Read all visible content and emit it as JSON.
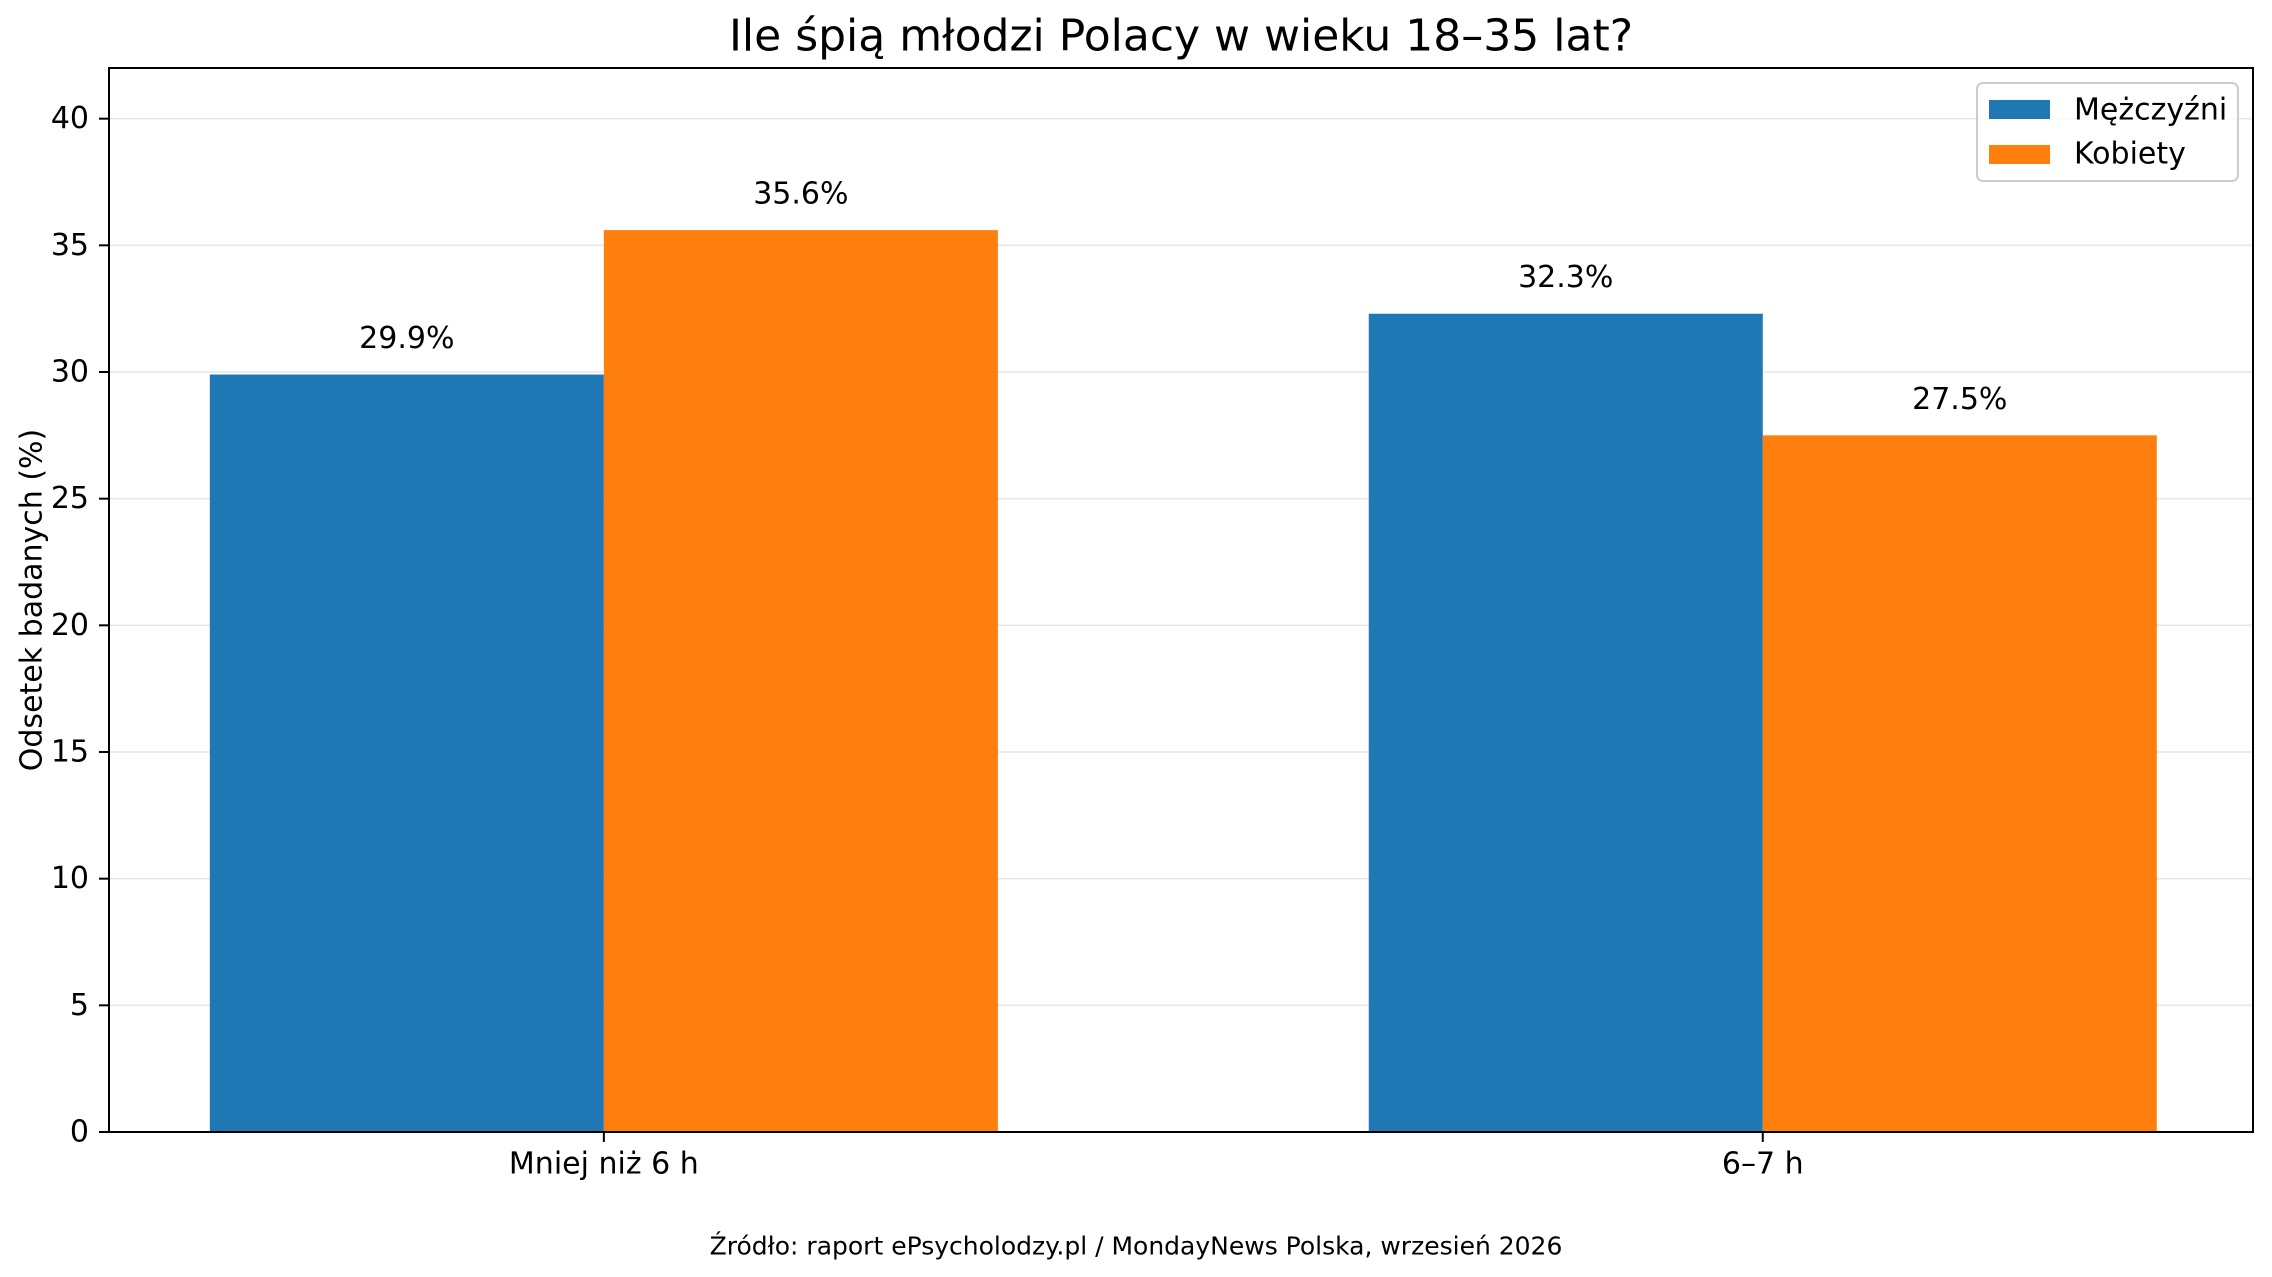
{
  "chart_data": {
    "type": "bar",
    "title": "Ile śpią młodzi Polacy w wieku 18–35 lat?",
    "xlabel": "",
    "ylabel": "Odsetek badanych (%)",
    "categories": [
      "Mniej niż 6 h",
      "6–7 h"
    ],
    "series": [
      {
        "name": "Mężczyźni",
        "color": "#1f77b4",
        "values": [
          29.9,
          32.3
        ],
        "labels": [
          "29.9%",
          "32.3%"
        ]
      },
      {
        "name": "Kobiety",
        "color": "#ff7f0e",
        "values": [
          35.6,
          27.5
        ],
        "labels": [
          "35.6%",
          "27.5%"
        ]
      }
    ],
    "ylim": [
      0,
      42
    ],
    "yticks": [
      0,
      5,
      10,
      15,
      20,
      25,
      30,
      35,
      40
    ],
    "grid": "y",
    "legend": "top-right"
  },
  "footer": {
    "source": "Źródło: raport ePsycholodzy.pl / MondayNews Polska, wrzesień 2026"
  }
}
